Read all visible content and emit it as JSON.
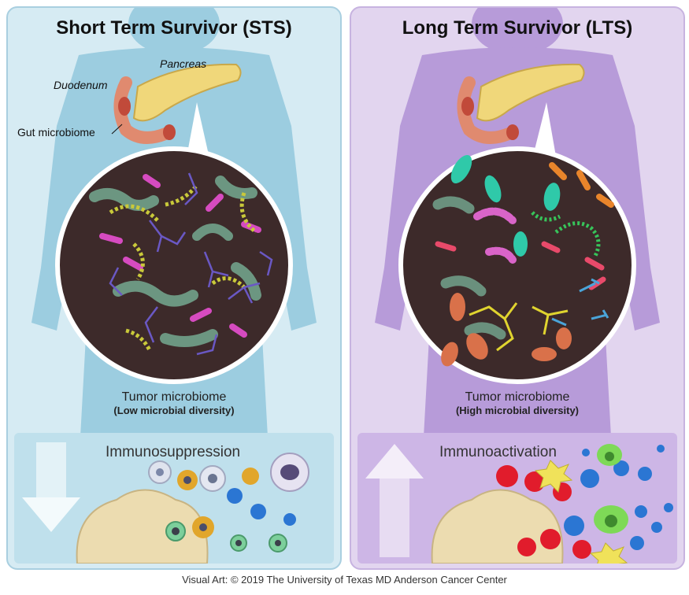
{
  "sts": {
    "title": "Short Term Survivor (STS)",
    "pancreas_label": "Pancreas",
    "duodenum_label": "Duodenum",
    "gut_label": "Gut microbiome",
    "caption": "Tumor microbiome",
    "caption_sub": "(Low microbial diversity)",
    "immune_label": "Immunosuppression"
  },
  "lts": {
    "title": "Long Term Survivor (LTS)",
    "caption": "Tumor microbiome",
    "caption_sub": "(High microbial diversity)",
    "immune_label": "Immunoactivation"
  },
  "credit": "Visual Art: © 2019 The University of Texas MD Anderson Cancer Center",
  "colors": {
    "sts_panel": "#d6ebf3",
    "lts_panel": "#e2d5ef",
    "body_sts": "#9ccde0",
    "body_lts": "#b79bd9",
    "circle_bg": "#3d2a2a"
  }
}
